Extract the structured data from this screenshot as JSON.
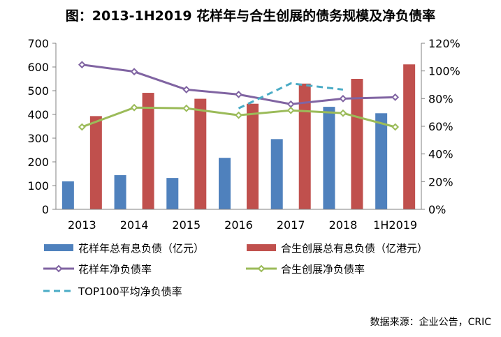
{
  "chart_data": {
    "type": "bar",
    "title": "图：2013-1H2019 花样年与合生创展的债务规模及净负债率",
    "categories": [
      "2013",
      "2014",
      "2015",
      "2016",
      "2017",
      "2018",
      "1H2019"
    ],
    "y_left": {
      "ylim": [
        0,
        700
      ],
      "ticks": [
        "0",
        "100",
        "200",
        "300",
        "400",
        "500",
        "600",
        "700"
      ]
    },
    "y_right": {
      "ylim": [
        0,
        120
      ],
      "ticks": [
        "0%",
        "20%",
        "40%",
        "60%",
        "80%",
        "100%",
        "120%"
      ]
    },
    "series": [
      {
        "name": "花样年总有息负债（亿元）",
        "type": "bar",
        "axis": "left",
        "color": "#4f81bd",
        "values": [
          118,
          144,
          132,
          217,
          296,
          432,
          405
        ]
      },
      {
        "name": "合生创展总有息负债（亿港元）",
        "type": "bar",
        "axis": "left",
        "color": "#c0504d",
        "values": [
          393,
          491,
          466,
          445,
          530,
          550,
          611
        ]
      },
      {
        "name": "花样年净负债率",
        "type": "line",
        "axis": "right",
        "color": "#8064a2",
        "marker": "diamond",
        "values": [
          104.5,
          99.5,
          86.5,
          83,
          76,
          80,
          81
        ]
      },
      {
        "name": "合生创展净负债率",
        "type": "line",
        "axis": "right",
        "color": "#9bbb59",
        "marker": "diamond",
        "values": [
          59.5,
          73.5,
          73,
          68,
          71.5,
          69.5,
          59.5
        ]
      },
      {
        "name": "TOP100平均净负债率",
        "type": "line",
        "axis": "right",
        "color": "#4bacc6",
        "dash": true,
        "values": [
          null,
          null,
          null,
          73,
          91,
          86.5,
          null
        ]
      }
    ],
    "source": "数据来源：企业公告，CRIC"
  }
}
